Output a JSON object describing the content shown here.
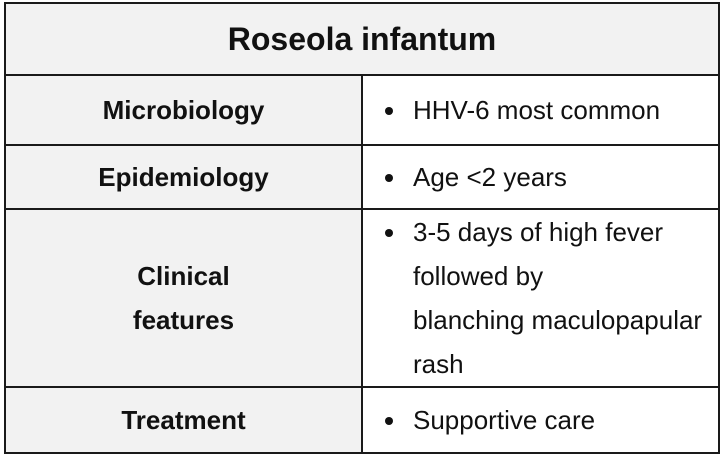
{
  "table": {
    "title": "Roseola infantum",
    "rows": [
      {
        "label": "Microbiology",
        "value": "HHV-6 most common"
      },
      {
        "label": "Epidemiology",
        "value": "Age <2 years"
      },
      {
        "label_line1": "Clinical",
        "label_line2": "features",
        "value_line1": "3-5 days of high fever followed by",
        "value_line2": "blanching maculopapular rash"
      },
      {
        "label": "Treatment",
        "value": "Supportive care"
      }
    ]
  },
  "colors": {
    "header_background": "#f2f2f2",
    "border": "#1a1a1a",
    "text": "#111111"
  }
}
